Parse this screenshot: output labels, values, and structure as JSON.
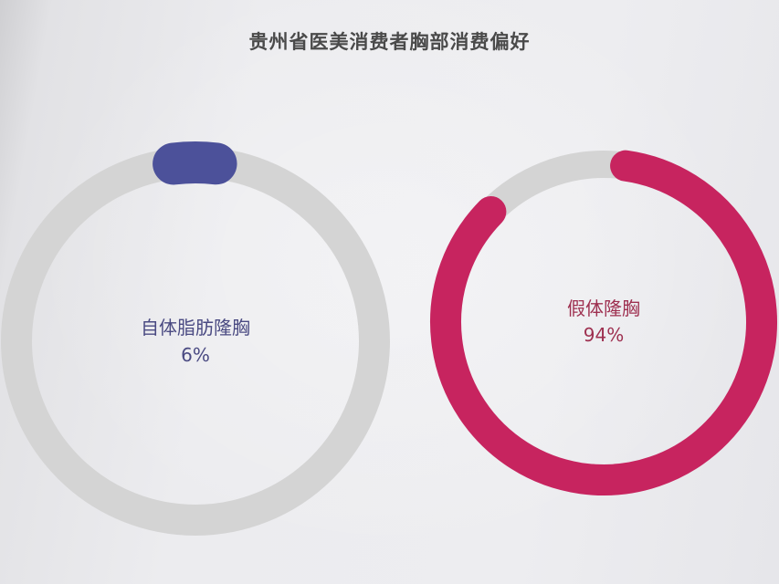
{
  "title": "贵州省医美消费者胸部消费偏好",
  "colors": {
    "track": "#d4d4d4",
    "left_accent": "#4c519a",
    "right_accent": "#c7245f",
    "left_text": "#4a4a82",
    "right_text": "#9e3050"
  },
  "chart_data": {
    "type": "pie",
    "title": "贵州省医美消费者胸部消费偏好",
    "slices": [
      {
        "label": "自体脂肪隆胸",
        "value": 6,
        "value_label": "6%"
      },
      {
        "label": "假体隆胸",
        "value": 94,
        "value_label": "94%"
      }
    ]
  }
}
